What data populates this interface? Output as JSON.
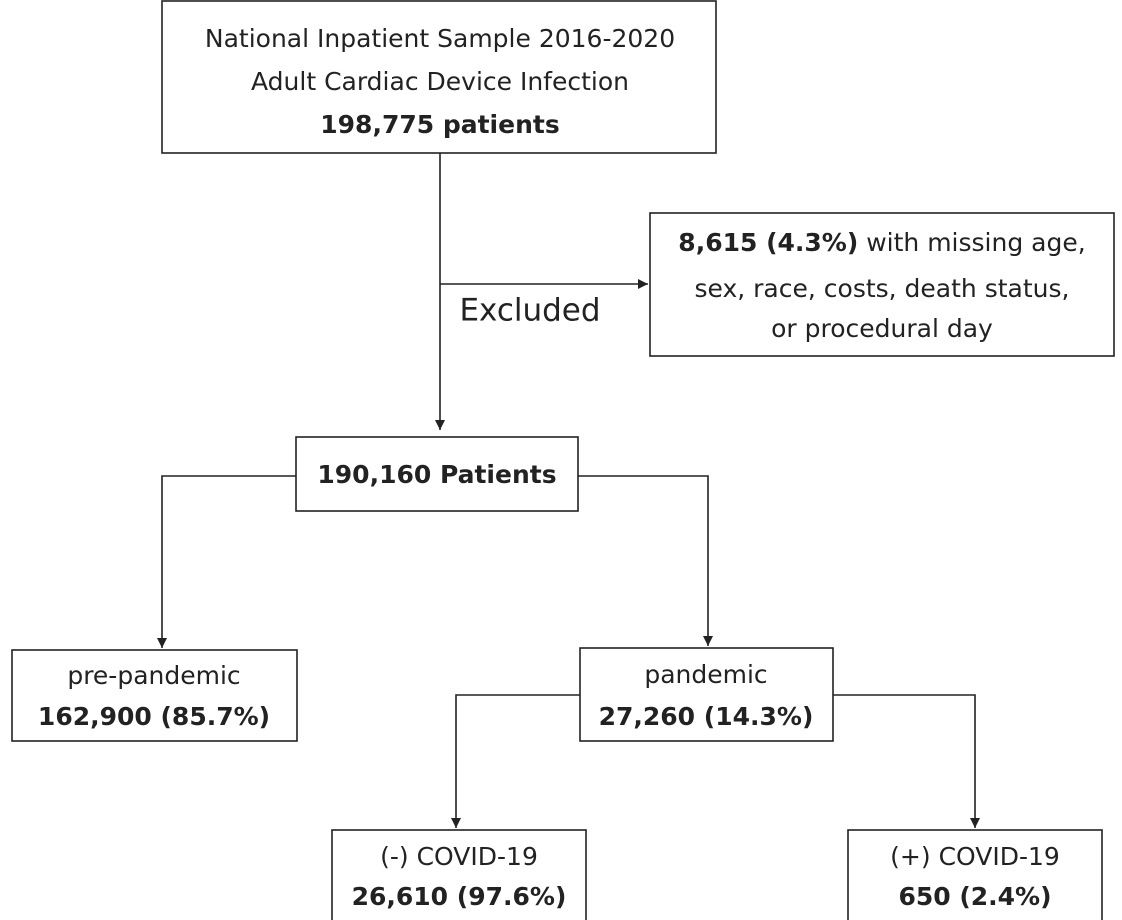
{
  "nodes": [
    {
      "lines": [
        "National Inpatient Sample 2016-2020",
        "Adult Cardiac Device Infection",
        "198,775 patients"
      ]
    },
    {
      "lines": [
        "8,615 (4.3%)",
        "with missing age,",
        "sex, race, costs, death status,",
        "or procedural day"
      ]
    },
    {
      "lines": [
        "190,160 Patients"
      ]
    },
    {
      "lines": [
        "pre-pandemic",
        "162,900 (85.7%)"
      ]
    },
    {
      "lines": [
        "pandemic",
        "27,260 (14.3%)"
      ]
    },
    {
      "lines": [
        "(-) COVID-19",
        "26,610 (97.6%)"
      ]
    },
    {
      "lines": [
        "(+) COVID-19",
        "650 (2.4%)"
      ]
    }
  ],
  "edge_label": "Excluded"
}
